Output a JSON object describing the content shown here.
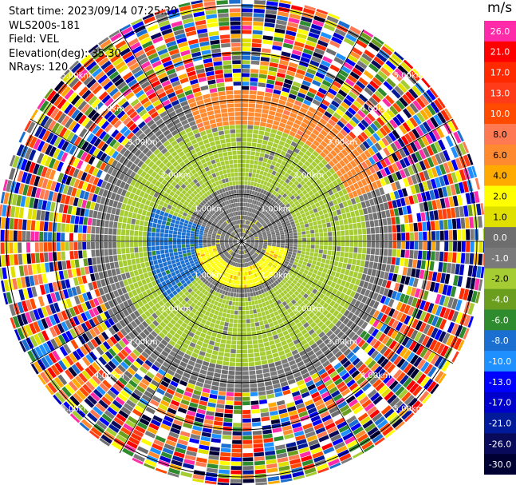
{
  "info": {
    "start_time": "Start time: 2023/09/14 07:25:30",
    "instrument": "WLS200s-181",
    "field": "Field: VEL",
    "elevation": "Elevation(deg): 35.30",
    "nrays": "NRays: 120"
  },
  "chart_data": {
    "type": "heatmap",
    "projection": "polar-ppi",
    "field": "VEL",
    "n_rays": 120,
    "range_rings_km": [
      1.0,
      2.0,
      3.0,
      4.0,
      5.0
    ],
    "range_ring_labels": [
      "1.00km",
      "2.00km",
      "3.00km",
      "4.00km",
      "5.00km"
    ],
    "colorbar": {
      "unit": "m/s",
      "ticks": [
        "26.0",
        "21.0",
        "17.0",
        "13.0",
        "10.0",
        "8.0",
        "6.0",
        "4.0",
        "2.0",
        "1.0",
        "0.0",
        "-1.0",
        "-2.0",
        "-4.0",
        "-6.0",
        "-8.0",
        "-10.0",
        "-13.0",
        "-17.0",
        "-21.0",
        "-26.0",
        "-30.0"
      ],
      "colors": [
        "#ff2ba8",
        "#ff0000",
        "#ff2a00",
        "#ff3b1a",
        "#ff4a00",
        "#ff7a52",
        "#ff8a30",
        "#ffaa00",
        "#ffff00",
        "#e0e000",
        "#6e6e6e",
        "#7a7a7a",
        "#a6cc33",
        "#6b9e1e",
        "#2e8b2e",
        "#1a6fd0",
        "#1e90ff",
        "#0000ff",
        "#0000cc",
        "#001a99",
        "#0a0a5a",
        "#000033"
      ]
    },
    "regions": [
      {
        "name": "inner-near-zero",
        "r_km": [
          0,
          0.5
        ],
        "velocity_ms": 0.0
      },
      {
        "name": "south-yellow-core",
        "az_deg": [
          100,
          260
        ],
        "r_km": [
          0.2,
          1.0
        ],
        "velocity_ms": 2.0
      },
      {
        "name": "north-orange",
        "az_deg": [
          340,
          70
        ],
        "r_km": [
          2.4,
          3.3
        ],
        "velocity_ms": 6.0
      },
      {
        "name": "west-blue",
        "az_deg": [
          230,
          290
        ],
        "r_km": [
          0.8,
          2.0
        ],
        "velocity_ms": -8.0
      },
      {
        "name": "ring-green",
        "r_km": [
          1.2,
          2.6
        ],
        "velocity_ms": -2.0
      },
      {
        "name": "outer-noise",
        "r_km": [
          3.2,
          5.6
        ],
        "velocity_ms": "random"
      }
    ]
  }
}
